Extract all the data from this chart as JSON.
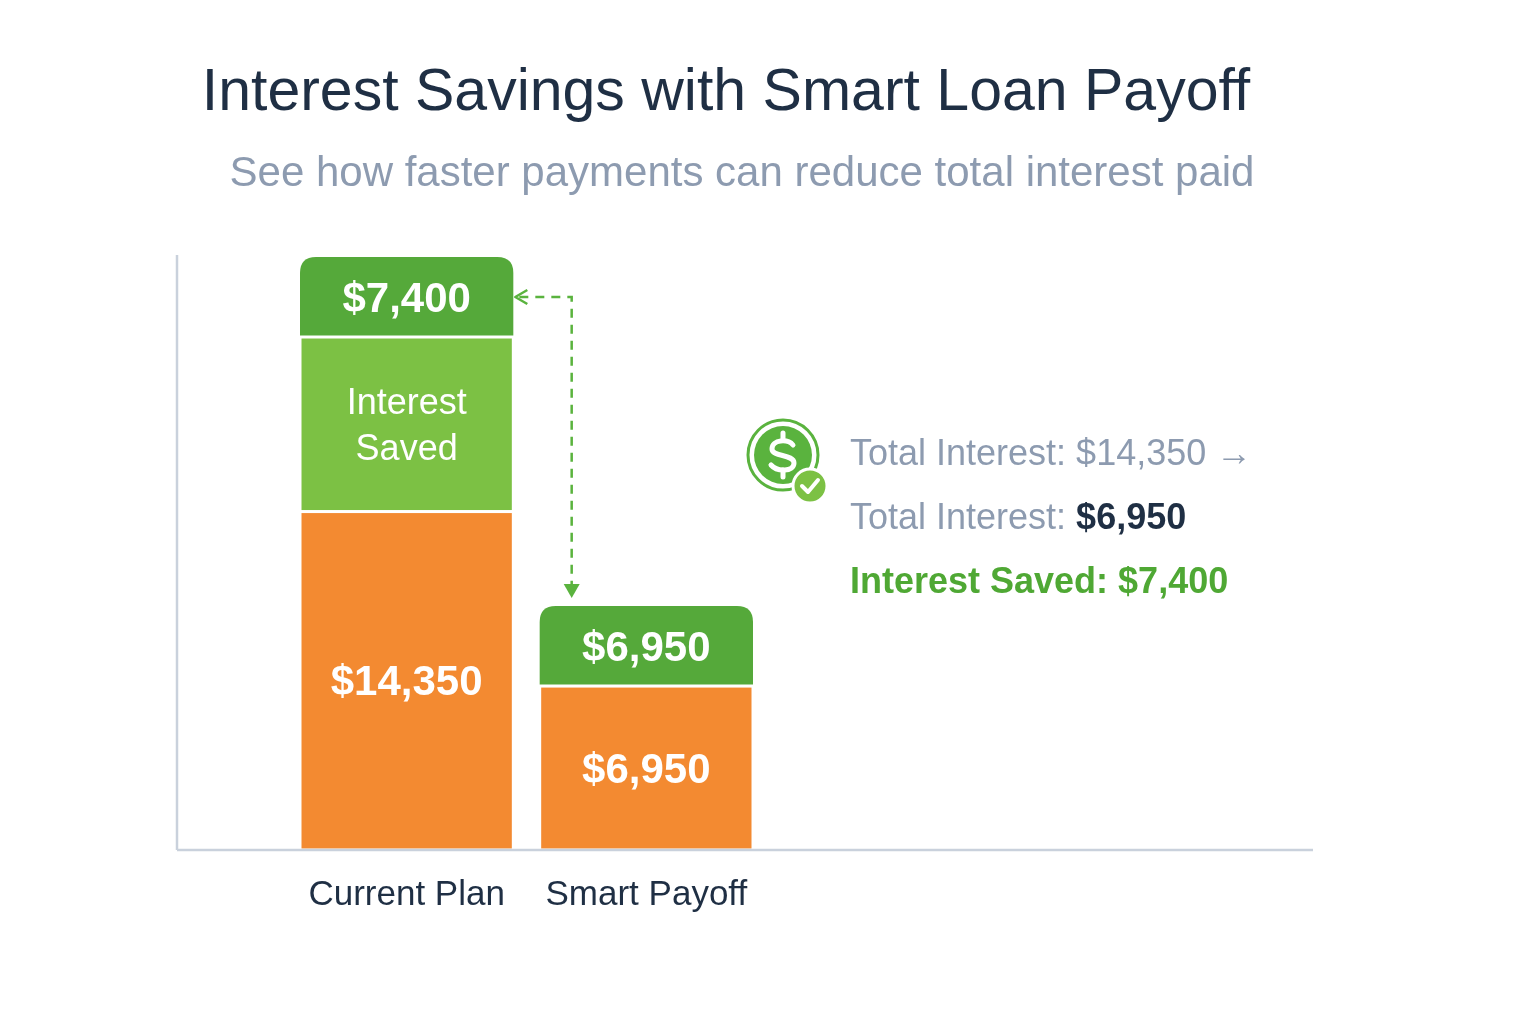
{
  "chart_data": {
    "type": "bar",
    "title": "Interest Savings with Smart Loan Payoff",
    "subtitle": "See how faster payments can reduce total interest paid",
    "categories": [
      "Current Plan",
      "Smart Payoff"
    ],
    "stacked": true,
    "series": [
      {
        "color": "#f38a31",
        "values": [
          14350,
          6950
        ],
        "value_labels": [
          "$14,350",
          "$6,950"
        ]
      },
      {
        "name": "Interest Saved",
        "color": "#7cc144",
        "values": [
          7400,
          null
        ]
      }
    ],
    "annotations": [
      {
        "text": "$7,400",
        "x": "Current Plan",
        "y": 21750
      },
      {
        "text": "$6,950",
        "x": "Smart Payoff",
        "y": 6950
      },
      "Total Interest: $14,350 →",
      "Total Interest: $6,950",
      "Interest Saved: $7,400"
    ]
  }
}
